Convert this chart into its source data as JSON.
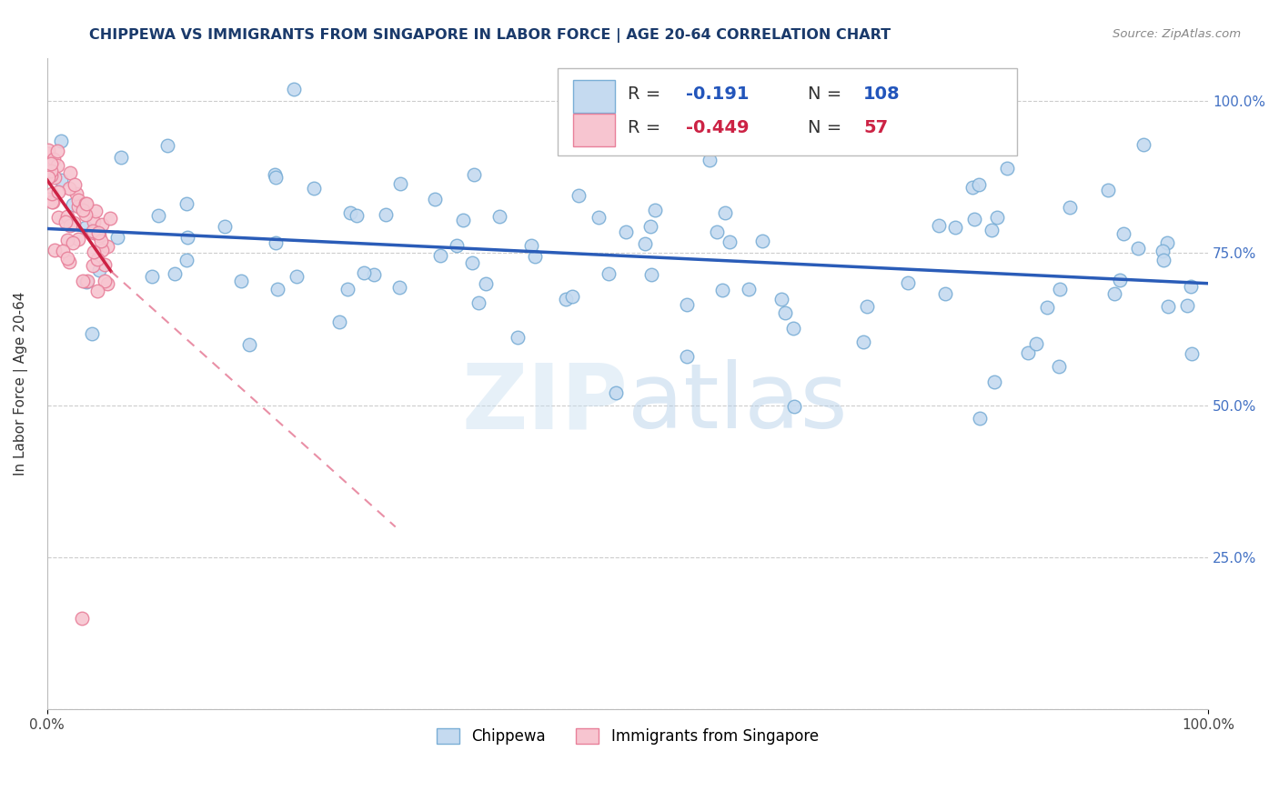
{
  "title": "CHIPPEWA VS IMMIGRANTS FROM SINGAPORE IN LABOR FORCE | AGE 20-64 CORRELATION CHART",
  "source_text": "Source: ZipAtlas.com",
  "ylabel": "In Labor Force | Age 20-64",
  "xlim": [
    0.0,
    1.0
  ],
  "ylim": [
    0.0,
    1.07
  ],
  "ytick_positions": [
    0.0,
    0.25,
    0.5,
    0.75,
    1.0
  ],
  "ytick_labels_right": [
    "",
    "25.0%",
    "50.0%",
    "75.0%",
    "100.0%"
  ],
  "xtick_positions": [
    0.0,
    1.0
  ],
  "xtick_labels": [
    "0.0%",
    "100.0%"
  ],
  "R_blue": -0.191,
  "N_blue": 108,
  "R_pink": -0.449,
  "N_pink": 57,
  "blue_fill": "#c5daf0",
  "blue_edge": "#7aaed6",
  "pink_fill": "#f7c5d0",
  "pink_edge": "#e8809a",
  "blue_line": "#2a5cb8",
  "pink_line_solid": "#cc2244",
  "pink_line_dash": "#e06080",
  "grid_color": "#cccccc",
  "title_color": "#1a3a6b",
  "tick_color": "#4472c4",
  "watermark_color": "#d0e8f8",
  "blue_line_start_y": 0.79,
  "blue_line_end_y": 0.7,
  "pink_line_start_x": 0.0,
  "pink_line_start_y": 0.87,
  "pink_line_solid_end_x": 0.055,
  "pink_line_solid_end_y": 0.72,
  "pink_line_dash_end_x": 0.3,
  "pink_line_dash_end_y": 0.3
}
